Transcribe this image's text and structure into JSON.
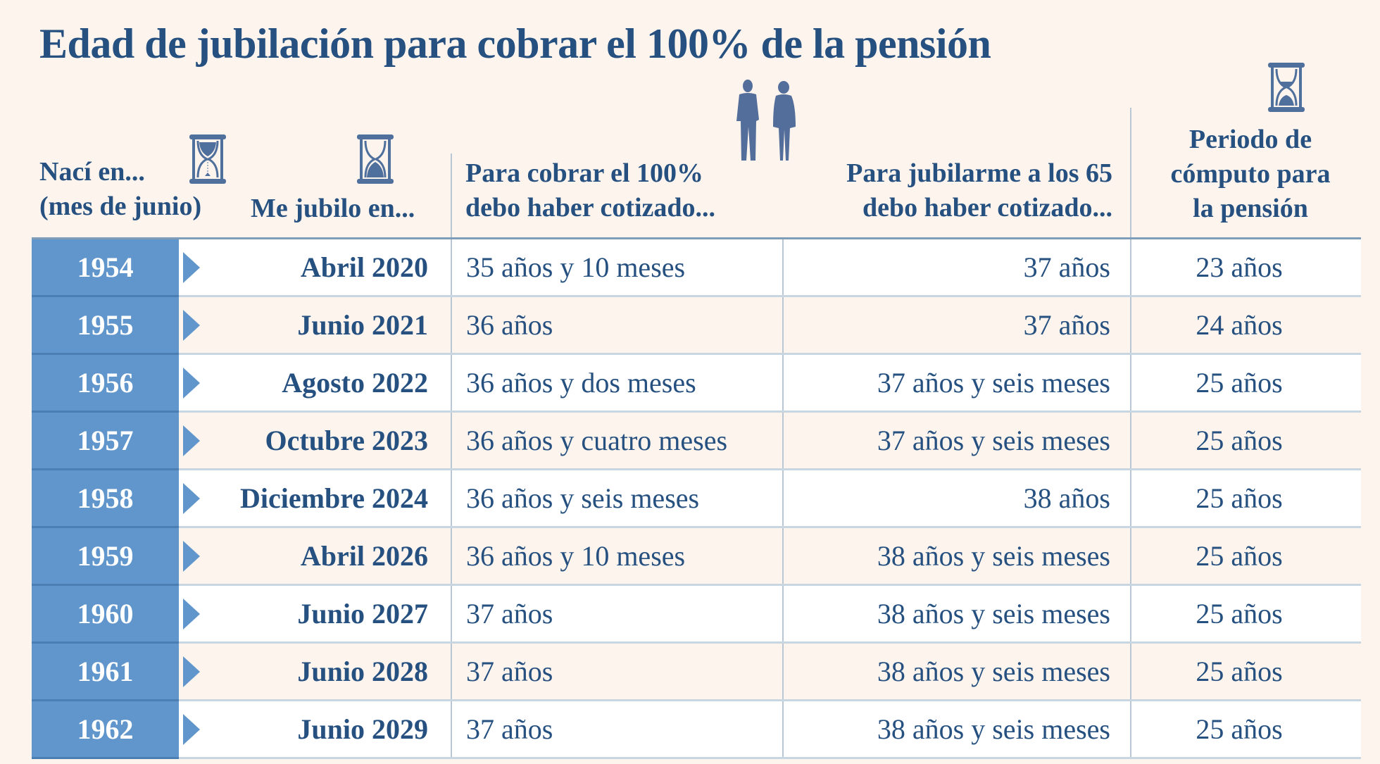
{
  "title": "Edad de jubilación para cobrar el 100% de la pensión",
  "headers": {
    "born_line1": "Nací en...",
    "born_line2": "(mes de junio)",
    "retire": "Me jubilo en...",
    "full_line1": "Para cobrar el 100%",
    "full_line2": "debo haber cotizado...",
    "at65_line1": "Para jubilarme a los 65",
    "at65_line2": "debo haber cotizado...",
    "period_line1": "Periodo de",
    "period_line2": "cómputo para",
    "period_line3": "la pensión"
  },
  "icons": [
    "hourglass-icon",
    "hourglass-icon",
    "elderly-couple-icon",
    "hourglass-icon"
  ],
  "colors": {
    "accent": "#6096cc",
    "text": "#25507f",
    "background": "#fdf4ee"
  },
  "rows": [
    {
      "year": "1954",
      "retire": "Abril 2020",
      "full": "35 años y 10 meses",
      "at65": "37 años",
      "period": "23 años"
    },
    {
      "year": "1955",
      "retire": "Junio 2021",
      "full": "36 años",
      "at65": "37 años",
      "period": "24 años"
    },
    {
      "year": "1956",
      "retire": "Agosto 2022",
      "full": "36 años y dos meses",
      "at65": "37 años y seis meses",
      "period": "25 años"
    },
    {
      "year": "1957",
      "retire": "Octubre 2023",
      "full": "36 años y cuatro meses",
      "at65": "37 años y seis meses",
      "period": "25 años"
    },
    {
      "year": "1958",
      "retire": "Diciembre 2024",
      "full": "36 años y seis meses",
      "at65": "38 años",
      "period": "25 años"
    },
    {
      "year": "1959",
      "retire": "Abril 2026",
      "full": "36 años y 10 meses",
      "at65": "38 años y seis meses",
      "period": "25 años"
    },
    {
      "year": "1960",
      "retire": "Junio 2027",
      "full": "37 años",
      "at65": "38 años y seis meses",
      "period": "25 años"
    },
    {
      "year": "1961",
      "retire": "Junio 2028",
      "full": "37 años",
      "at65": "38 años y seis meses",
      "period": "25 años"
    },
    {
      "year": "1962",
      "retire": "Junio 2029",
      "full": "37 años",
      "at65": "38 años y seis meses",
      "period": "25 años"
    }
  ]
}
